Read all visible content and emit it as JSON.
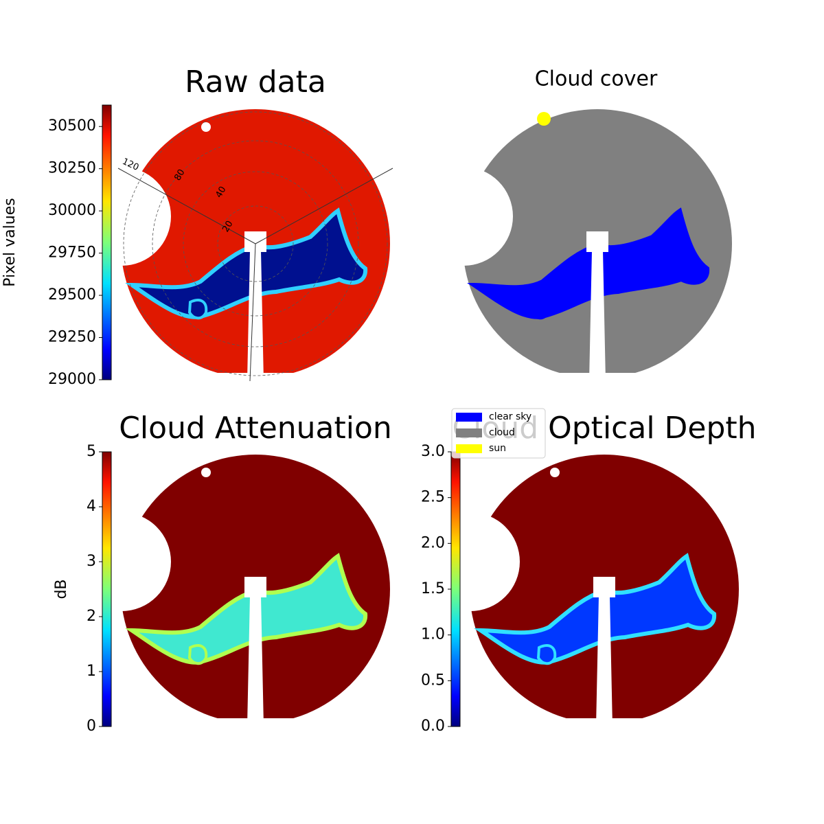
{
  "chart_data": [
    {
      "type": "image",
      "title": "Raw data",
      "colormap": "jet",
      "polar_labels": [
        "120",
        "80",
        "40",
        "20"
      ],
      "colorbar": {
        "label": "Pixel values",
        "lim": [
          29000,
          30627
        ],
        "ticks": [
          29000,
          29250,
          29500,
          29750,
          30000,
          30250,
          30500
        ]
      }
    },
    {
      "type": "image",
      "title": "Cloud cover",
      "legend": [
        {
          "name": "clear sky",
          "color": "#0000ff"
        },
        {
          "name": "cloud",
          "color": "#808080"
        },
        {
          "name": "sun",
          "color": "#ffff00"
        }
      ]
    },
    {
      "type": "image",
      "title": "Cloud Attenuation",
      "colormap": "jet",
      "colorbar": {
        "label": "dB",
        "lim": [
          0,
          5
        ],
        "ticks": [
          0,
          1,
          2,
          3,
          4,
          5
        ]
      }
    },
    {
      "type": "image",
      "title": "Cloud Optical Depth",
      "colormap": "jet",
      "colorbar": {
        "lim": [
          0,
          3
        ],
        "ticks": [
          {
            "value": 0,
            "label": "0.0"
          },
          0.5,
          {
            "value": 1,
            "label": "1.0"
          },
          1.5,
          {
            "value": 2,
            "label": "2.0"
          },
          2.5,
          {
            "value": 3,
            "label": "3.0"
          }
        ]
      }
    }
  ]
}
